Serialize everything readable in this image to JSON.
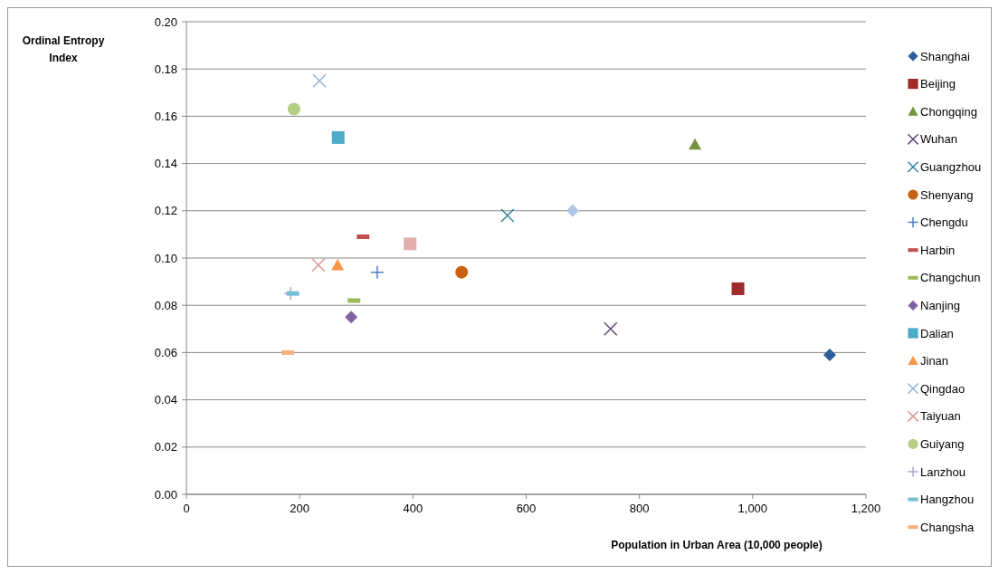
{
  "chart_data": {
    "type": "scatter",
    "xlabel": "Population in Urban Area (10,000 people)",
    "ylabel": "Ordinal Entropy Index",
    "xlim": [
      0,
      1200
    ],
    "xticks": [
      0,
      200,
      400,
      600,
      800,
      {
        "value": 1000,
        "label": "1,000"
      },
      {
        "value": 1200,
        "label": "1,200"
      }
    ],
    "ylim": [
      0,
      0.2
    ],
    "yticks": [
      {
        "value": 0,
        "label": "0.00"
      },
      {
        "value": 0.02,
        "label": "0.02"
      },
      {
        "value": 0.04,
        "label": "0.04"
      },
      {
        "value": 0.06,
        "label": "0.06"
      },
      {
        "value": 0.08,
        "label": "0.08"
      },
      {
        "value": 0.1,
        "label": "0.10"
      },
      {
        "value": 0.12,
        "label": "0.12"
      },
      {
        "value": 0.14,
        "label": "0.14"
      },
      {
        "value": 0.16,
        "label": "0.16"
      },
      {
        "value": 0.18,
        "label": "0.18"
      },
      {
        "value": 0.2,
        "label": "0.20"
      }
    ],
    "grid": "y",
    "legend": "right",
    "series": [
      {
        "name": "Shanghai",
        "color": "#2c5d98",
        "marker": "diamond",
        "x": [
          1136
        ],
        "values": [
          0.059
        ]
      },
      {
        "name": "Beijing",
        "color": "#a0292a",
        "marker": "square",
        "x": [
          974
        ],
        "values": [
          0.087
        ]
      },
      {
        "name": "Chongqing",
        "color": "#77933c",
        "marker": "triangle",
        "x": [
          898
        ],
        "values": [
          0.148
        ]
      },
      {
        "name": "Wuhan",
        "color": "#5f497a",
        "marker": "cross",
        "x": [
          749
        ],
        "values": [
          0.07
        ]
      },
      {
        "name": "Guangzhou",
        "color": "#31859c",
        "marker": "cross",
        "x": [
          567
        ],
        "values": [
          0.118
        ]
      },
      {
        "name": "Shenyang",
        "color": "#c8620f",
        "marker": "circle",
        "x": [
          486
        ],
        "values": [
          0.094
        ]
      },
      {
        "name": "Chengdu",
        "color": "#4f81bd",
        "marker": "plus",
        "x": [
          337
        ],
        "values": [
          0.094
        ]
      },
      {
        "name": "Harbin",
        "color": "#c0504d",
        "x": [
          312
        ],
        "values": [
          0.109
        ]
      },
      {
        "name": "Changchun",
        "color": "#9bbb59",
        "x": [
          296
        ],
        "values": [
          0.082
        ]
      },
      {
        "name": "Nanjing",
        "color": "#8064a2",
        "marker": "diamond",
        "x": [
          291
        ],
        "values": [
          0.075
        ]
      },
      {
        "name": "Dalian",
        "color": "#4bacc6",
        "marker": "square",
        "x": [
          268
        ],
        "values": [
          0.151
        ]
      },
      {
        "name": "Jinan",
        "color": "#f79646",
        "marker": "triangle",
        "x": [
          267
        ],
        "values": [
          0.097
        ]
      },
      {
        "name": "Qingdao",
        "color": "#95b3d7",
        "marker": "cross",
        "x": [
          235
        ],
        "values": [
          0.175
        ]
      },
      {
        "name": "Taiyuan",
        "color": "#d99694",
        "marker": "cross",
        "x": [
          233
        ],
        "values": [
          0.097
        ]
      },
      {
        "name": "Guiyang",
        "color": "#b5cf85",
        "marker": "circle",
        "x": [
          190
        ],
        "values": [
          0.163
        ]
      },
      {
        "name": "Lanzhou",
        "color": "#b3a2c7",
        "marker": "plus",
        "x": [
          184
        ],
        "values": [
          0.085
        ]
      },
      {
        "name": "Hangzhou",
        "color": "#75bfd6",
        "x": [
          188
        ],
        "values": [
          0.085
        ]
      },
      {
        "name": "Changsha",
        "color": "#fab07a",
        "x": [
          179
        ],
        "values": [
          0.06
        ]
      },
      {
        "color": "#e0afae",
        "marker": "square",
        "x": [
          395
        ],
        "values": [
          0.106
        ]
      },
      {
        "color": "#b1c6e2",
        "marker": "diamond",
        "x": [
          682
        ],
        "values": [
          0.12
        ]
      }
    ]
  }
}
